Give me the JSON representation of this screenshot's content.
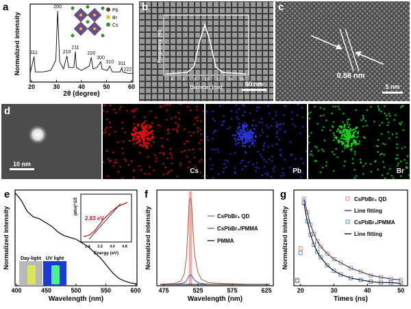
{
  "panels": {
    "a": {
      "label": "a",
      "xlabel": "2θ (degree)",
      "ylabel": "Normalized intensity",
      "xticks": [
        "20",
        "30",
        "40",
        "50",
        "60"
      ],
      "peaks": [
        "111",
        "200",
        "210",
        "211",
        "220",
        "300",
        "310",
        "311",
        "222"
      ],
      "legend": [
        "Pb",
        "Br",
        "Cs"
      ]
    },
    "b": {
      "label": "b",
      "scale": "50 nm",
      "inset_xlabel": "Diameter (nm)",
      "inset_ylabel": "Frequency (%)",
      "inset_xticks": [
        "4",
        "6",
        "8",
        "10",
        "12",
        "14",
        "16"
      ]
    },
    "c": {
      "label": "c",
      "measure": "0.58 nm",
      "scale": "5 nm"
    },
    "d": {
      "label": "d",
      "scale": "10 nm",
      "maps": [
        "Cs",
        "Pb",
        "Br"
      ]
    },
    "e": {
      "label": "e",
      "xlabel": "Wavelength (nm)",
      "ylabel": "Normalized intensity",
      "xticks": [
        "400",
        "450",
        "500",
        "550",
        "600"
      ],
      "inset_xlabel": "Energy (eV)",
      "inset_ylabel": "(αhν)^1/2",
      "inset_xticks": [
        "2.4",
        "3.2",
        "4.0",
        "4.8"
      ],
      "gap": "2.83 eV",
      "photo_left": "Day-light",
      "photo_right": "UV light"
    },
    "f": {
      "label": "f",
      "xlabel": "Wavelength (nm)",
      "ylabel": "Normalized intensity",
      "xticks": [
        "475",
        "525",
        "575",
        "625"
      ],
      "legend": [
        "CsPbBr₃ QD",
        "CsPbBr₃/PMMA",
        "PMMA"
      ]
    },
    "g": {
      "label": "g",
      "xlabel": "Times (ns)",
      "ylabel": "Normalized intensity",
      "xticks": [
        "20",
        "30",
        "40",
        "50"
      ],
      "legend": [
        "CsPbBr₃ QD",
        "Line fitting",
        "CsPbBr₃/PMMA",
        "Line fitting"
      ]
    }
  },
  "colors": {
    "red_map": "#e01010",
    "blue_map": "#2a36d8",
    "green_map": "#19d41a",
    "f_qd": "#b0634a",
    "f_pmma": "#3b5f9e",
    "g_qd": "#c8806a",
    "g_pmma": "#4a78b8"
  },
  "chart_data": [
    {
      "type": "line",
      "panel": "a",
      "xlabel": "2θ (degree)",
      "ylabel": "Normalized intensity",
      "xlim": [
        20,
        60
      ],
      "x": [
        20,
        21.5,
        22,
        25,
        28,
        30,
        30.7,
        31.5,
        33,
        34.3,
        35,
        37,
        37.6,
        38,
        40,
        43,
        43.8,
        44.5,
        46,
        47.5,
        48,
        50,
        51,
        52,
        53,
        55,
        55.7,
        56,
        58,
        60
      ],
      "y": [
        0.12,
        0.35,
        0.14,
        0.14,
        0.16,
        0.3,
        0.98,
        0.28,
        0.18,
        0.36,
        0.2,
        0.2,
        0.42,
        0.2,
        0.16,
        0.22,
        0.34,
        0.18,
        0.2,
        0.28,
        0.18,
        0.16,
        0.22,
        0.14,
        0.14,
        0.14,
        0.2,
        0.14,
        0.12,
        0.12
      ]
    },
    {
      "type": "line",
      "panel": "e",
      "xlabel": "Wavelength (nm)",
      "ylabel": "Normalized intensity",
      "xlim": [
        400,
        600
      ],
      "x": [
        400,
        410,
        420,
        430,
        440,
        450,
        460,
        470,
        480,
        490,
        500,
        510,
        520,
        530,
        540,
        550,
        560,
        570,
        580,
        590,
        600
      ],
      "y": [
        1.0,
        0.92,
        0.8,
        0.74,
        0.72,
        0.68,
        0.64,
        0.58,
        0.54,
        0.52,
        0.5,
        0.46,
        0.42,
        0.36,
        0.3,
        0.22,
        0.14,
        0.08,
        0.05,
        0.03,
        0.02
      ]
    },
    {
      "type": "line",
      "panel": "f",
      "xlabel": "Wavelength (nm)",
      "ylabel": "Normalized intensity",
      "xlim": [
        465,
        635
      ],
      "x": [
        470,
        490,
        500,
        505,
        508,
        510,
        512,
        514,
        516,
        518,
        520,
        525,
        530,
        540,
        560,
        600,
        630
      ],
      "series": [
        {
          "name": "CsPbBr₃ QD",
          "values": [
            0,
            0.01,
            0.04,
            0.12,
            0.3,
            0.6,
            0.95,
            1.0,
            0.9,
            0.6,
            0.35,
            0.14,
            0.06,
            0.02,
            0.01,
            0,
            0
          ]
        },
        {
          "name": "CsPbBr₃/PMMA",
          "values": [
            0,
            0,
            0.01,
            0.02,
            0.04,
            0.07,
            0.1,
            0.11,
            0.1,
            0.07,
            0.05,
            0.02,
            0.01,
            0,
            0,
            0,
            0
          ]
        },
        {
          "name": "PMMA",
          "values": [
            0,
            0,
            0,
            0,
            0,
            0,
            0,
            0,
            0,
            0,
            0,
            0,
            0,
            0,
            0,
            0,
            0
          ]
        }
      ]
    },
    {
      "type": "scatter",
      "panel": "g",
      "xlabel": "Times (ns)",
      "ylabel": "Normalized intensity",
      "xlim": [
        18,
        52
      ],
      "x": [
        19,
        20,
        21,
        22,
        23,
        24,
        25,
        26,
        28,
        30,
        32,
        35,
        38,
        41,
        44,
        47,
        50
      ],
      "series": [
        {
          "name": "CsPbBr₃ QD",
          "values": [
            0.05,
            0.4,
            0.95,
            0.8,
            0.66,
            0.56,
            0.48,
            0.42,
            0.34,
            0.28,
            0.24,
            0.18,
            0.14,
            0.1,
            0.08,
            0.06,
            0.05
          ]
        },
        {
          "name": "CsPbBr₃/PMMA",
          "values": [
            0.04,
            0.35,
            0.9,
            0.7,
            0.55,
            0.44,
            0.36,
            0.3,
            0.21,
            0.15,
            0.11,
            0.07,
            0.05,
            0.03,
            0.02,
            0.02,
            0.01
          ]
        }
      ]
    }
  ]
}
